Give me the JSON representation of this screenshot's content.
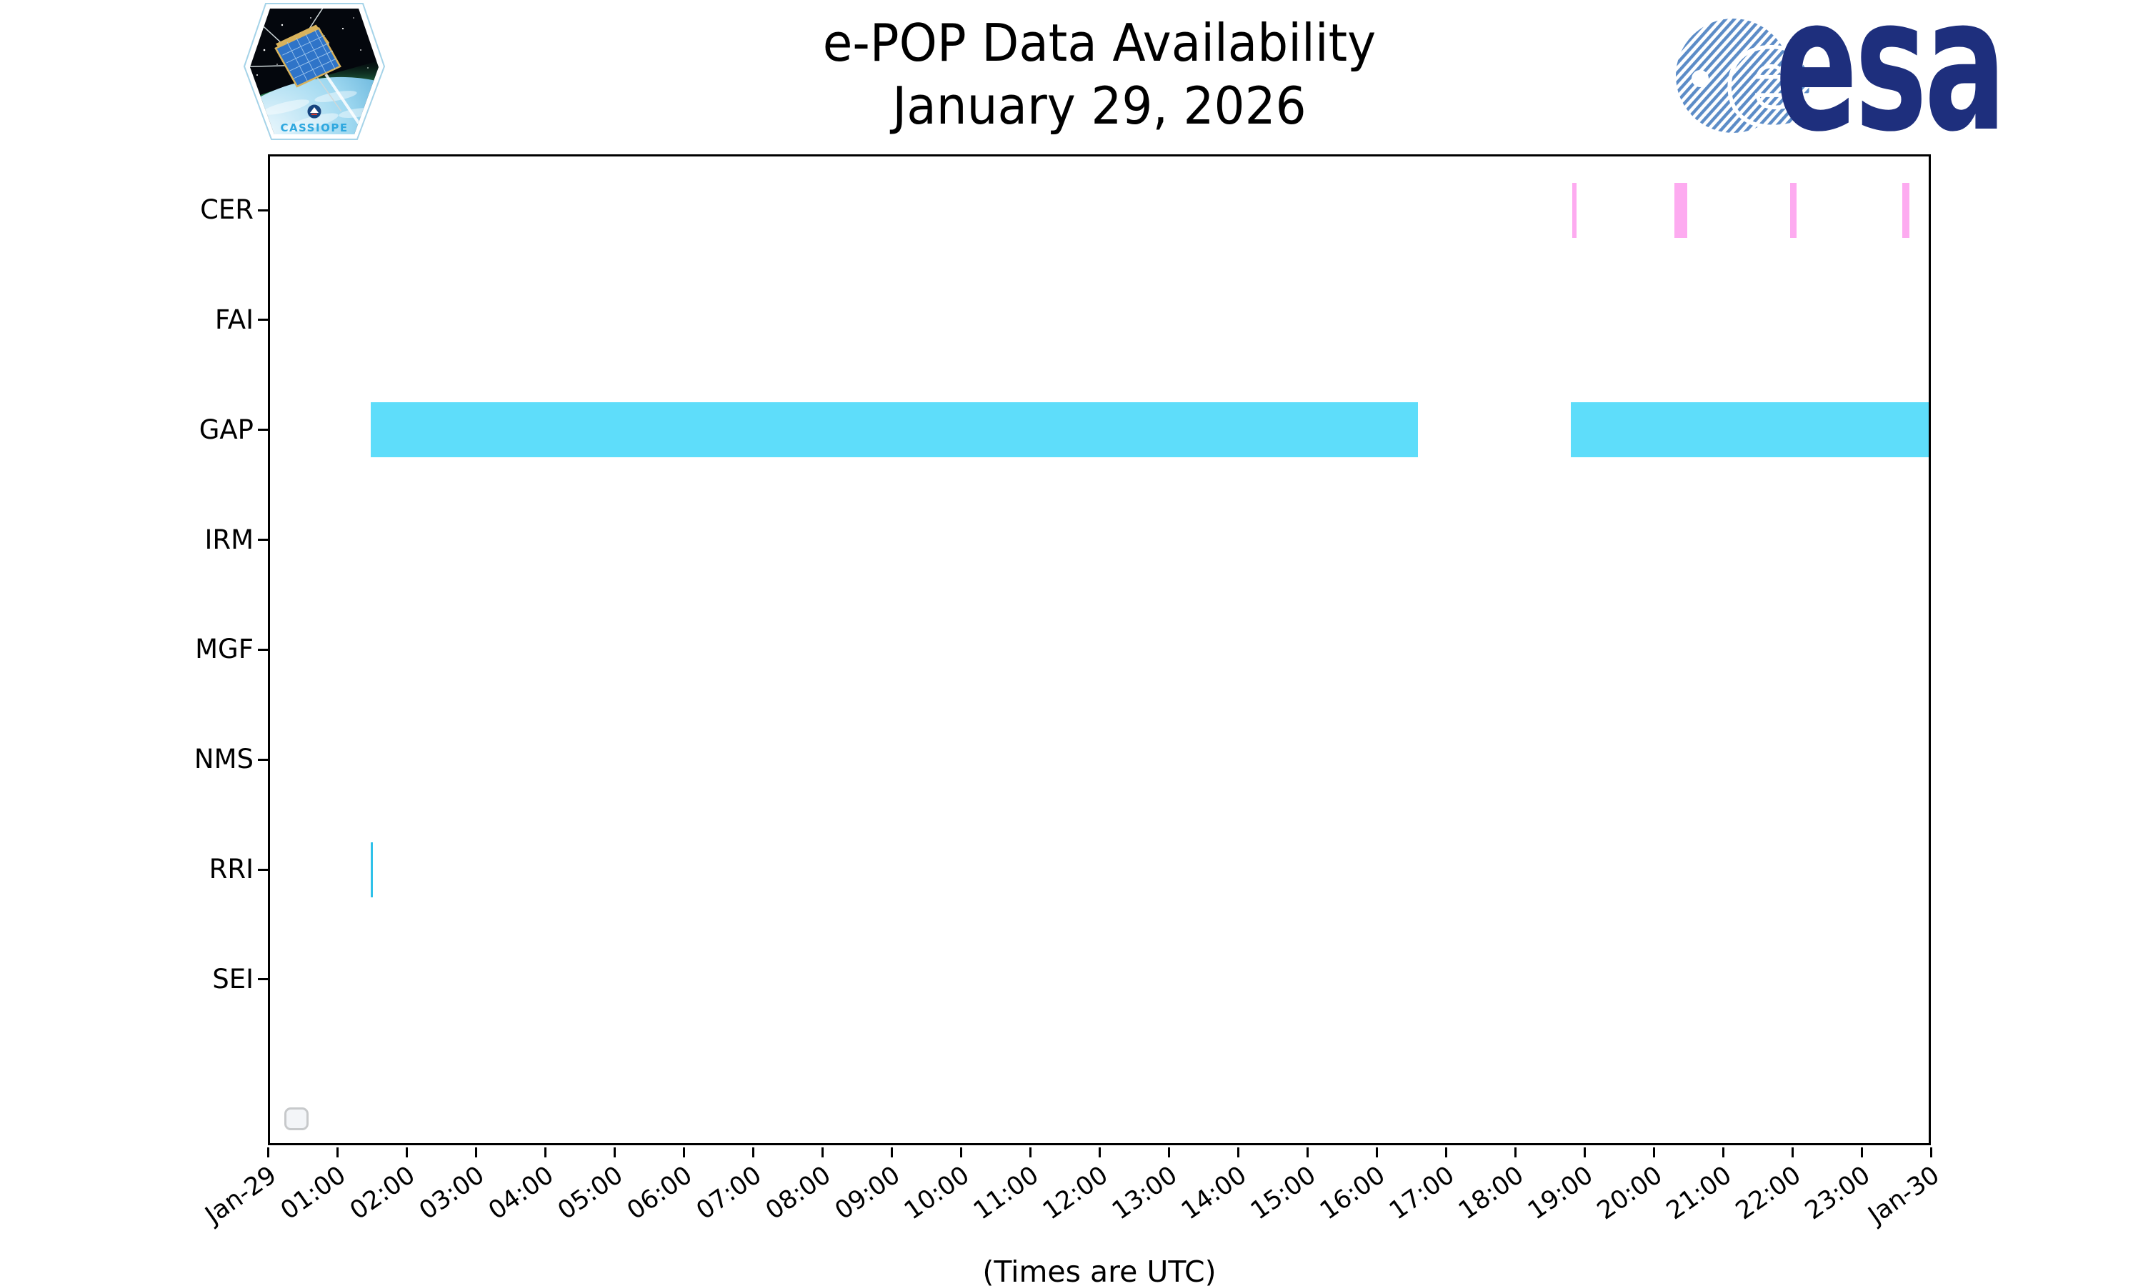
{
  "header": {
    "title_line1": "e-POP Data Availability",
    "title_line2": "January 29, 2026",
    "cassiope_label": "CASSIOPE",
    "esa_wordmark": "esa"
  },
  "footer": {
    "times_note": "(Times are UTC)"
  },
  "legend": {
    "checkbox_checked": false
  },
  "colors": {
    "available_cyan": "#5EDDFA",
    "available_cyan_thin": "#2FC1E9",
    "available_pink": "#FDABF0",
    "axis_black": "#000000",
    "esa_navy": "#1E2F7D",
    "esa_stripe_blue": "#5C8CC7",
    "cassiope_text_blue": "#2FA8DF",
    "checkbox_border_gray": "#C7C9CB"
  },
  "chart_data": {
    "type": "bar",
    "subtype": "horizontal-availability-timeline",
    "title": "e-POP Data Availability — January 29, 2026",
    "xlabel": "(Times are UTC)",
    "ylabel": "",
    "grid": false,
    "legend_position": "none",
    "x_axis": {
      "range_hours": [
        0,
        24
      ],
      "tick_interval_hours": 1,
      "tick_labels": [
        "Jan-29",
        "01:00",
        "02:00",
        "03:00",
        "04:00",
        "05:00",
        "06:00",
        "07:00",
        "08:00",
        "09:00",
        "10:00",
        "11:00",
        "12:00",
        "13:00",
        "14:00",
        "15:00",
        "16:00",
        "17:00",
        "18:00",
        "19:00",
        "20:00",
        "21:00",
        "22:00",
        "23:00",
        "Jan-30"
      ]
    },
    "y_axis": {
      "categories": [
        "CER",
        "FAI",
        "GAP",
        "IRM",
        "MGF",
        "NMS",
        "RRI",
        "SEI"
      ]
    },
    "series": [
      {
        "name": "CER",
        "color_key": "available_pink",
        "intervals": [
          {
            "start": "18:49",
            "end": "18:53",
            "start_h": 18.82,
            "end_h": 18.89
          },
          {
            "start": "20:18",
            "end": "20:29",
            "start_h": 20.3,
            "end_h": 20.48
          },
          {
            "start": "21:58",
            "end": "22:04",
            "start_h": 21.97,
            "end_h": 22.06
          },
          {
            "start": "23:35",
            "end": "23:41",
            "start_h": 23.59,
            "end_h": 23.69
          }
        ]
      },
      {
        "name": "GAP",
        "color_key": "available_cyan",
        "intervals": [
          {
            "start": "01:29",
            "end": "16:36",
            "start_h": 1.483,
            "end_h": 16.6
          },
          {
            "start": "18:48",
            "end": "24:00",
            "start_h": 18.8,
            "end_h": 24.0
          }
        ]
      },
      {
        "name": "RRI",
        "color_key": "available_cyan_thin",
        "intervals": [
          {
            "start": "01:29",
            "end": "01:31",
            "start_h": 1.483,
            "end_h": 1.517
          }
        ]
      }
    ]
  }
}
